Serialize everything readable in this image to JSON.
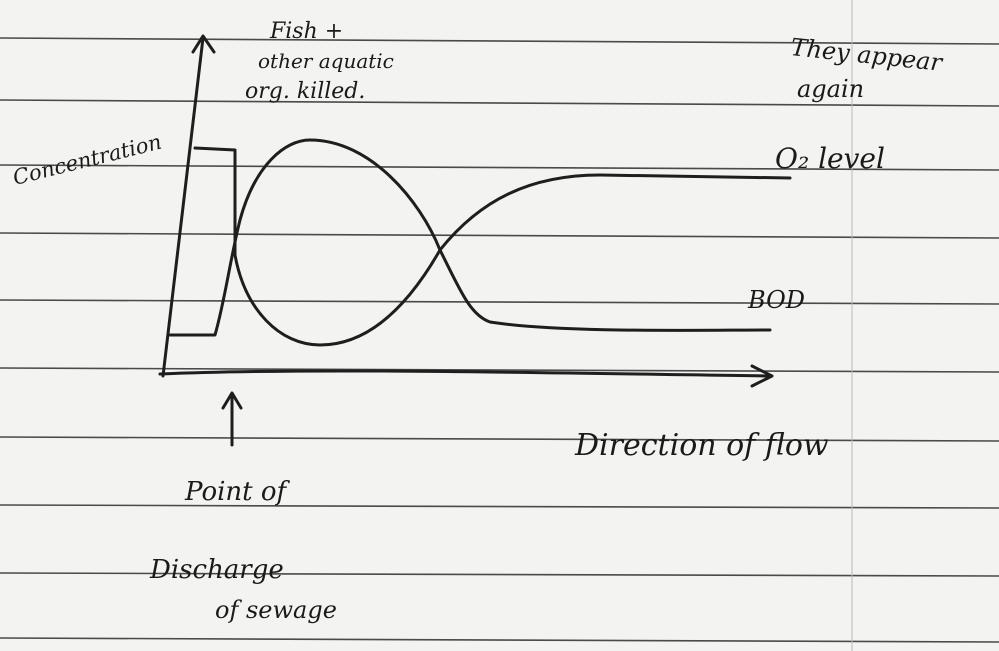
{
  "annotations": {
    "fish_killed": [
      "Fish +",
      "other aquatic",
      "org. killed."
    ],
    "reappear": [
      "They appear",
      "again"
    ]
  },
  "axes": {
    "y_label": "Concentration",
    "x_label": "Direction of flow"
  },
  "curves": {
    "oxygen": "O₂ level",
    "bod": "BOD"
  },
  "discharge": [
    "Point of",
    "Discharge",
    "of sewage"
  ]
}
